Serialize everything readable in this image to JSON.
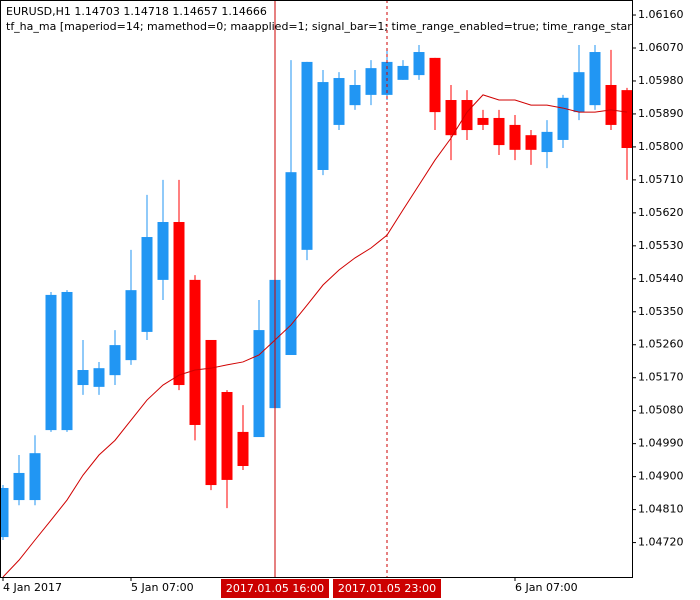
{
  "chart_data": {
    "type": "candlestick",
    "title": "EURUSD,H1  1.14703 1.14718 1.14657 1.14666",
    "subtitle": "tf_ha_ma [maperiod=14; mamethod=0; maapplied=1; signal_bar=1; time_range_enabled=true; time_range_star",
    "open": [
      1.04735,
      1.04836,
      1.04836,
      1.05027,
      1.05027,
      1.0515,
      1.05145,
      1.05177,
      1.05218,
      1.05295,
      1.05437,
      1.05595,
      1.05437,
      1.05273,
      1.05131,
      1.05022,
      1.05008,
      1.05087,
      1.05232,
      1.05519,
      1.05737,
      1.0586,
      1.05914,
      1.05942,
      1.05942,
      1.05983,
      1.05996,
      1.06043,
      1.05928,
      1.05928,
      1.05879,
      1.05879,
      1.0586,
      1.05832,
      1.05786,
      1.05819,
      1.05895,
      1.05914,
      1.05969,
      1.05955
    ],
    "high": [
      1.04877,
      1.04959,
      1.05013,
      1.05404,
      1.05409,
      1.05273,
      1.05213,
      1.053,
      1.05519,
      1.05669,
      1.0571,
      1.0571,
      1.0545,
      1.05273,
      1.05136,
      1.05095,
      1.05382,
      1.05464,
      1.06037,
      1.06032,
      1.0601,
      1.06004,
      1.0601,
      1.06037,
      1.0607,
      1.06037,
      1.06078,
      1.06043,
      1.05969,
      1.05955,
      1.05901,
      1.05901,
      1.05887,
      1.05846,
      1.05873,
      1.05942,
      1.06078,
      1.06078,
      1.06065,
      1.05961
    ],
    "low": [
      1.04727,
      1.04822,
      1.04822,
      1.05022,
      1.05022,
      1.05123,
      1.05123,
      1.0515,
      1.05205,
      1.05273,
      1.05382,
      1.05136,
      1.04999,
      1.04863,
      1.04814,
      1.04918,
      1.05008,
      1.05082,
      1.05232,
      1.05491,
      1.05723,
      1.05846,
      1.05901,
      1.05914,
      1.05928,
      1.05983,
      1.05983,
      1.05846,
      1.05764,
      1.05819,
      1.05846,
      1.05778,
      1.05764,
      1.05751,
      1.05742,
      1.05797,
      1.05873,
      1.05901,
      1.05846,
      1.0571
    ],
    "close": [
      1.04869,
      1.0491,
      1.04964,
      1.05396,
      1.05404,
      1.05191,
      1.05196,
      1.05259,
      1.05409,
      1.05554,
      1.05595,
      1.0515,
      1.05041,
      1.04877,
      1.04891,
      1.04929,
      1.053,
      1.05437,
      1.05731,
      1.06032,
      1.05977,
      1.05988,
      1.05969,
      1.06015,
      1.06032,
      1.06021,
      1.06059,
      1.05895,
      1.05832,
      1.05846,
      1.0586,
      1.05805,
      1.05792,
      1.05792,
      1.05841,
      1.05934,
      1.06004,
      1.06059,
      1.0586,
      1.05797
    ],
    "up_color": "#2196f3",
    "down_color": "#ff0000",
    "lines": [
      {
        "color": "#d00000",
        "values": [
          1.04626,
          1.04672,
          1.04727,
          1.04781,
          1.04836,
          1.04904,
          1.04959,
          1.04999,
          1.05054,
          1.05109,
          1.0515,
          1.05177,
          1.05191,
          1.05196,
          1.05205,
          1.05213,
          1.05232,
          1.05273,
          1.05314,
          1.05368,
          1.05423,
          1.05464,
          1.05497,
          1.05524,
          1.05559,
          1.05628,
          1.05696,
          1.05764,
          1.05824,
          1.05895,
          1.05942,
          1.05928,
          1.05928,
          1.05914,
          1.05914,
          1.05906,
          1.05895,
          1.05895,
          1.05901,
          1.05895
        ]
      }
    ],
    "xticks": [
      {
        "value": 0,
        "label": "4 Jan 2017"
      },
      {
        "value": 8,
        "label": "5 Jan 07:00"
      },
      {
        "value": 32,
        "label": "6 Jan 07:00"
      }
    ],
    "markers": [
      {
        "at": 17,
        "label": "2017.01.05 16:00",
        "style": "solid"
      },
      {
        "at": 24,
        "label": "2017.01.05 23:00",
        "style": "dashed"
      }
    ],
    "marker_color": "#cc0000",
    "ylim": [
      1.04626,
      1.06201
    ],
    "yticks": [
      {
        "value": 1.0616,
        "label": "1.06160"
      },
      {
        "value": 1.0607,
        "label": "1.06070"
      },
      {
        "value": 1.0598,
        "label": "1.05980"
      },
      {
        "value": 1.0589,
        "label": "1.05890"
      },
      {
        "value": 1.058,
        "label": "1.05800"
      },
      {
        "value": 1.0571,
        "label": "1.05710"
      },
      {
        "value": 1.0562,
        "label": "1.05620"
      },
      {
        "value": 1.0553,
        "label": "1.05530"
      },
      {
        "value": 1.0544,
        "label": "1.05440"
      },
      {
        "value": 1.0535,
        "label": "1.05350"
      },
      {
        "value": 1.0526,
        "label": "1.05260"
      },
      {
        "value": 1.0517,
        "label": "1.05170"
      },
      {
        "value": 1.0508,
        "label": "1.05080"
      },
      {
        "value": 1.0499,
        "label": "1.04990"
      },
      {
        "value": 1.049,
        "label": "1.04900"
      },
      {
        "value": 1.0481,
        "label": "1.04810"
      },
      {
        "value": 1.0472,
        "label": "1.04720"
      }
    ]
  }
}
